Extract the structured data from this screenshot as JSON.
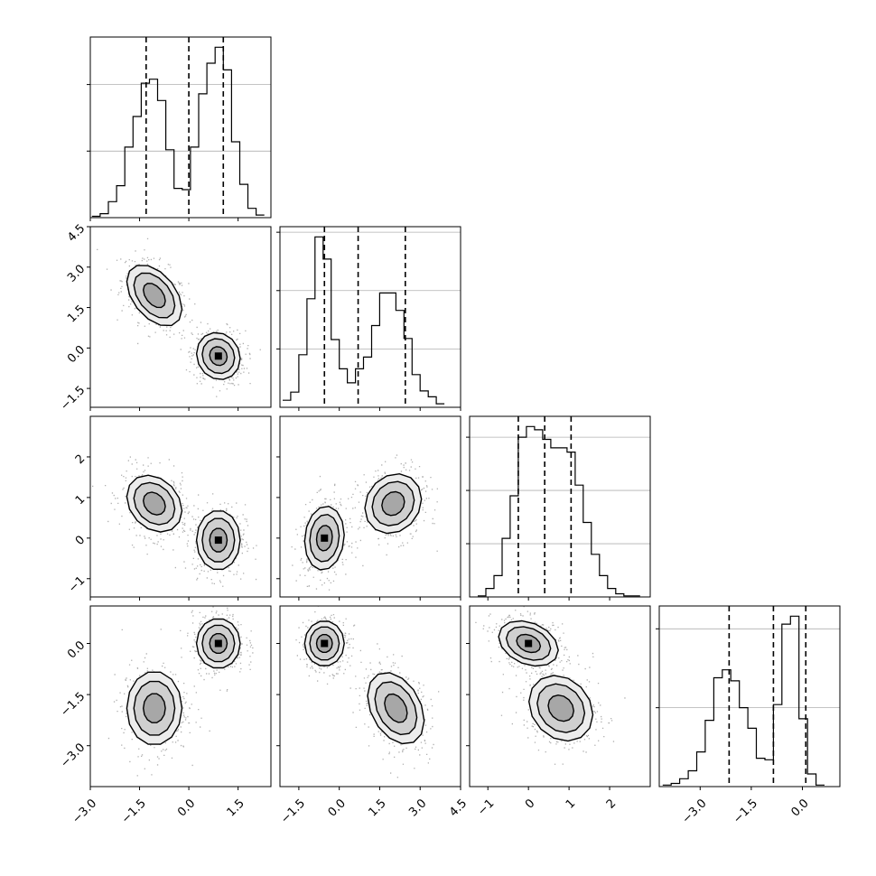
{
  "chart_data": {
    "type": "corner",
    "grid": true,
    "dimensions": [
      {
        "index": 0,
        "range": [
          -3.0,
          2.5
        ],
        "ticks": [
          -3.0,
          -1.5,
          0.0,
          1.5
        ],
        "tick_labels": [
          "−3.0",
          "−1.5",
          "0.0",
          "1.5"
        ],
        "quantiles": [
          -1.3,
          0.0,
          1.05
        ]
      },
      {
        "index": 1,
        "range": [
          -2.2,
          4.5
        ],
        "ticks": [
          -1.5,
          0.0,
          1.5,
          3.0,
          4.5
        ],
        "tick_labels": [
          "−1.5",
          "0.0",
          "1.5",
          "3.0",
          "4.5"
        ],
        "quantiles": [
          -0.55,
          0.7,
          2.45
        ]
      },
      {
        "index": 2,
        "range": [
          -1.45,
          3.0
        ],
        "ticks": [
          -1,
          0,
          1,
          2
        ],
        "tick_labels": [
          "−1",
          "0",
          "1",
          "2"
        ],
        "quantiles": [
          -0.25,
          0.4,
          1.05
        ]
      },
      {
        "index": 3,
        "range": [
          -4.2,
          1.1
        ],
        "ticks": [
          -3.0,
          -1.5,
          0.0
        ],
        "tick_labels": [
          "−3.0",
          "−1.5",
          "0.0"
        ],
        "quantiles": [
          -2.15,
          -0.85,
          0.1
        ]
      }
    ],
    "histograms": [
      {
        "dim": 0,
        "x0": -2.95,
        "bin_width": 0.25,
        "counts": [
          1,
          3,
          12,
          24,
          53,
          76,
          101,
          104,
          88,
          51,
          22,
          21,
          53,
          93,
          116,
          128,
          111,
          57,
          25,
          7,
          2
        ]
      },
      {
        "dim": 1,
        "x0": -2.1,
        "bin_width": 0.3,
        "counts": [
          6,
          13,
          45,
          93,
          146,
          127,
          58,
          33,
          21,
          33,
          43,
          70,
          98,
          98,
          83,
          59,
          28,
          14,
          9,
          3
        ]
      },
      {
        "dim": 2,
        "x0": -1.25,
        "bin_width": 0.2,
        "counts": [
          1,
          8,
          20,
          55,
          95,
          150,
          160,
          157,
          148,
          140,
          140,
          136,
          105,
          70,
          40,
          20,
          8,
          3,
          1,
          1
        ]
      },
      {
        "dim": 3,
        "x0": -4.1,
        "bin_width": 0.25,
        "counts": [
          1,
          2,
          5,
          10,
          22,
          42,
          69,
          74,
          67,
          50,
          37,
          18,
          17,
          52,
          103,
          108,
          43,
          8,
          1
        ]
      }
    ],
    "pairs": [
      {
        "x_dim": 0,
        "y_dim": 1,
        "modes": [
          {
            "cx": -1.05,
            "cy": 1.95,
            "sx": 0.48,
            "sy": 0.65,
            "rho": -0.45
          },
          {
            "cx": 0.9,
            "cy": -0.3,
            "sx": 0.38,
            "sy": 0.5,
            "rho": -0.1
          }
        ]
      },
      {
        "x_dim": 0,
        "y_dim": 2,
        "modes": [
          {
            "cx": -1.05,
            "cy": 0.85,
            "sx": 0.48,
            "sy": 0.4,
            "rho": -0.25
          },
          {
            "cx": 0.9,
            "cy": -0.05,
            "sx": 0.38,
            "sy": 0.42,
            "rho": 0.0
          }
        ]
      },
      {
        "x_dim": 0,
        "y_dim": 3,
        "modes": [
          {
            "cx": -1.05,
            "cy": -1.9,
            "sx": 0.48,
            "sy": 0.62,
            "rho": 0.0
          },
          {
            "cx": 0.9,
            "cy": 0.0,
            "sx": 0.38,
            "sy": 0.42,
            "rho": 0.0
          }
        ]
      },
      {
        "x_dim": 1,
        "y_dim": 2,
        "modes": [
          {
            "cx": -0.55,
            "cy": 0.0,
            "sx": 0.42,
            "sy": 0.45,
            "rho": 0.1
          },
          {
            "cx": 2.0,
            "cy": 0.85,
            "sx": 0.6,
            "sy": 0.42,
            "rho": 0.15
          }
        ]
      },
      {
        "x_dim": 1,
        "y_dim": 3,
        "modes": [
          {
            "cx": -0.55,
            "cy": 0.0,
            "sx": 0.42,
            "sy": 0.38,
            "rho": 0.0
          },
          {
            "cx": 2.1,
            "cy": -1.9,
            "sx": 0.6,
            "sy": 0.6,
            "rho": -0.35
          }
        ]
      },
      {
        "x_dim": 2,
        "y_dim": 3,
        "modes": [
          {
            "cx": 0.0,
            "cy": 0.0,
            "sx": 0.42,
            "sy": 0.38,
            "rho": -0.3
          },
          {
            "cx": 0.8,
            "cy": -1.9,
            "sx": 0.45,
            "sy": 0.55,
            "rho": -0.2
          }
        ]
      }
    ]
  }
}
